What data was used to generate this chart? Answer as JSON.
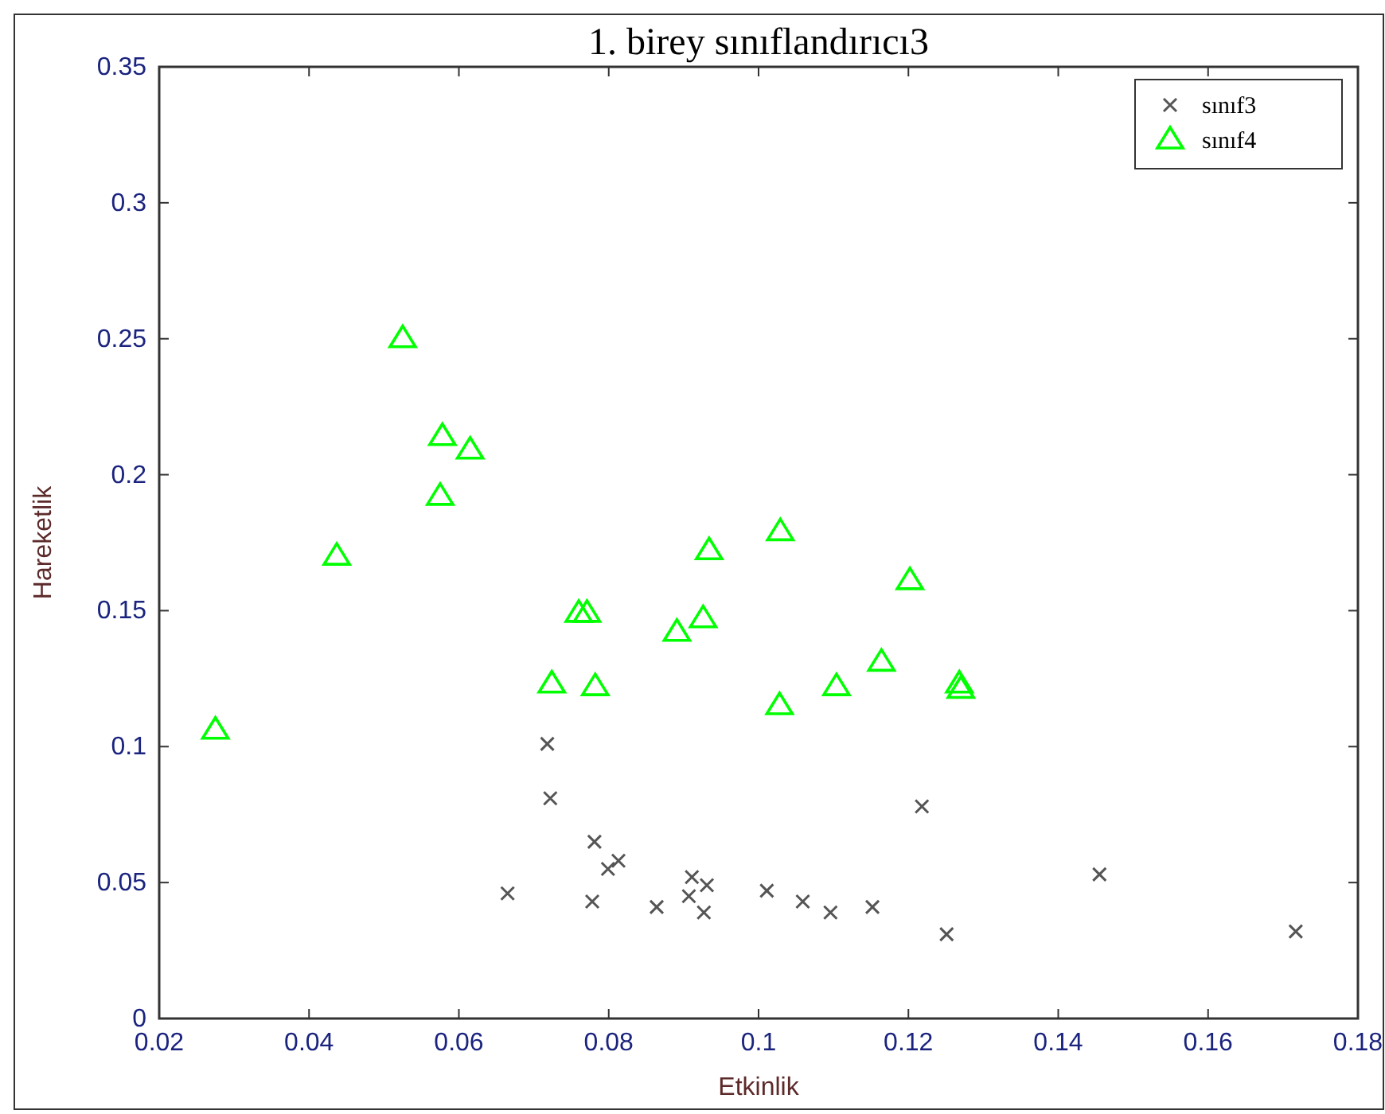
{
  "chart_data": {
    "type": "scatter",
    "title": "1. birey    sınıflandırıcı3",
    "xlabel": "Etkinlik",
    "ylabel": "Hareketlik",
    "xlim": [
      0.02,
      0.18
    ],
    "xticks": [
      0.02,
      0.04,
      0.06,
      0.08,
      0.1,
      0.12,
      0.14,
      0.16,
      0.18
    ],
    "ylim": [
      0,
      0.35
    ],
    "yticks": [
      0,
      0.05,
      0.1,
      0.15,
      0.2,
      0.25,
      0.3,
      0.35
    ],
    "grid": false,
    "legend": "top right",
    "series": [
      {
        "name": "sınıf3",
        "color": "#555555",
        "marker": "cross",
        "x": [
          0.0665,
          0.0718,
          0.0722,
          0.0781,
          0.0778,
          0.0799,
          0.0813,
          0.0864,
          0.0907,
          0.0911,
          0.0927,
          0.0931,
          0.1011,
          0.1059,
          0.1096,
          0.1152,
          0.1218,
          0.1251,
          0.1455,
          0.1717
        ],
        "values": [
          0.046,
          0.101,
          0.081,
          0.065,
          0.043,
          0.055,
          0.058,
          0.041,
          0.045,
          0.052,
          0.039,
          0.049,
          0.047,
          0.043,
          0.039,
          0.041,
          0.078,
          0.031,
          0.053,
          0.032
        ]
      },
      {
        "name": "sınıf4",
        "color": "#00ff00",
        "marker": "triangle",
        "x": [
          0.0275,
          0.0437,
          0.0525,
          0.0578,
          0.0575,
          0.0615,
          0.0724,
          0.076,
          0.0771,
          0.0782,
          0.0891,
          0.0926,
          0.0934,
          0.1029,
          0.1028,
          0.1104,
          0.1164,
          0.1202,
          0.1268,
          0.127
        ],
        "values": [
          0.106,
          0.17,
          0.25,
          0.214,
          0.192,
          0.209,
          0.123,
          0.149,
          0.149,
          0.122,
          0.142,
          0.147,
          0.172,
          0.179,
          0.115,
          0.122,
          0.131,
          0.161,
          0.123,
          0.121
        ]
      }
    ]
  }
}
